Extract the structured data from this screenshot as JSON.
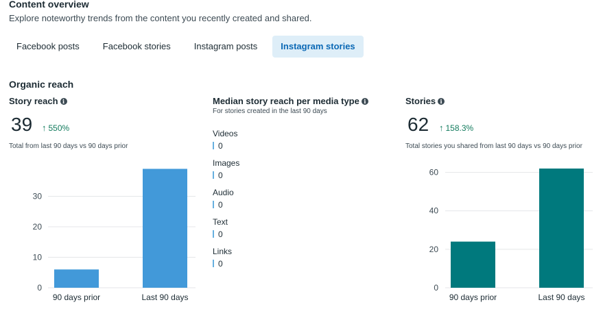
{
  "header": {
    "title": "Content overview",
    "subtitle": "Explore noteworthy trends from the content you recently created and shared."
  },
  "tabs": [
    {
      "label": "Facebook posts",
      "active": false
    },
    {
      "label": "Facebook stories",
      "active": false
    },
    {
      "label": "Instagram posts",
      "active": false
    },
    {
      "label": "Instagram stories",
      "active": true
    }
  ],
  "section": {
    "title": "Organic reach"
  },
  "story_reach": {
    "title": "Story reach",
    "value": "39",
    "delta": "550%",
    "caption": "Total from last 90 days vs 90 days prior"
  },
  "median_reach": {
    "title": "Median story reach per media type",
    "caption": "For stories created in the last 90 days",
    "items": [
      {
        "label": "Videos",
        "value": "0"
      },
      {
        "label": "Images",
        "value": "0"
      },
      {
        "label": "Audio",
        "value": "0"
      },
      {
        "label": "Text",
        "value": "0"
      },
      {
        "label": "Links",
        "value": "0"
      }
    ]
  },
  "stories": {
    "title": "Stories",
    "value": "62",
    "delta": "158.3%",
    "caption": "Total stories you shared from last 90 days vs 90 days prior"
  },
  "colors": {
    "reach_bar": "#4299d9",
    "stories_bar": "#00797d",
    "positive": "#127b5d",
    "active_tab_bg": "#deeef8",
    "active_tab_text": "#0a68b5"
  },
  "chart_data": [
    {
      "type": "bar",
      "categories": [
        "90 days prior",
        "Last 90 days"
      ],
      "values": [
        6,
        39
      ],
      "ylim": [
        0,
        40
      ],
      "yticks": [
        0,
        10,
        20,
        30
      ],
      "grid": true
    },
    {
      "type": "bar",
      "categories": [
        "90 days prior",
        "Last 90 days"
      ],
      "values": [
        24,
        62
      ],
      "ylim": [
        0,
        62
      ],
      "yticks": [
        0,
        20,
        40,
        60
      ],
      "grid": true
    }
  ]
}
